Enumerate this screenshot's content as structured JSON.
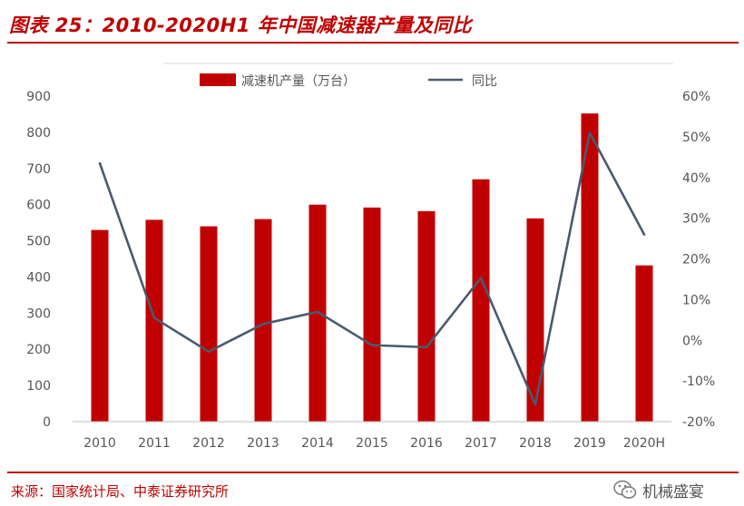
{
  "header": {
    "title": "图表 25：2010-2020H1 年中国减速器产量及同比"
  },
  "footer": {
    "source": "来源：国家统计局、中泰证券研究所",
    "watermark": "机械盛宴"
  },
  "colors": {
    "accent": "#c00000",
    "bar": "#c00000",
    "line": "#4a5a6e",
    "text": "#555555",
    "axis": "#bfbfbf"
  },
  "icons": [
    "wechat-icon"
  ],
  "chart_data": {
    "type": "bar",
    "title": "",
    "xlabel": "",
    "ylabel": "",
    "categories": [
      "2010",
      "2011",
      "2012",
      "2013",
      "2014",
      "2015",
      "2016",
      "2017",
      "2018",
      "2019",
      "2020H"
    ],
    "ylim": [
      0,
      900
    ],
    "y_ticks": [
      "0",
      "100",
      "200",
      "300",
      "400",
      "500",
      "600",
      "700",
      "800",
      "900"
    ],
    "y2lim": [
      -20,
      60
    ],
    "y2_ticks": [
      "-20%",
      "-10%",
      "0%",
      "10%",
      "20%",
      "30%",
      "40%",
      "50%",
      "60%"
    ],
    "grid": false,
    "legend_position": "top",
    "series": [
      {
        "name": "减速机产量（万台）",
        "type": "bar",
        "axis": "left",
        "values": [
          530,
          558,
          540,
          560,
          600,
          592,
          582,
          670,
          562,
          852,
          432
        ]
      },
      {
        "name": "同比",
        "type": "line",
        "axis": "right",
        "values": [
          43.5,
          5.5,
          -2.8,
          4,
          7,
          -1.2,
          -1.7,
          15.3,
          -15.8,
          51,
          26
        ]
      }
    ]
  }
}
